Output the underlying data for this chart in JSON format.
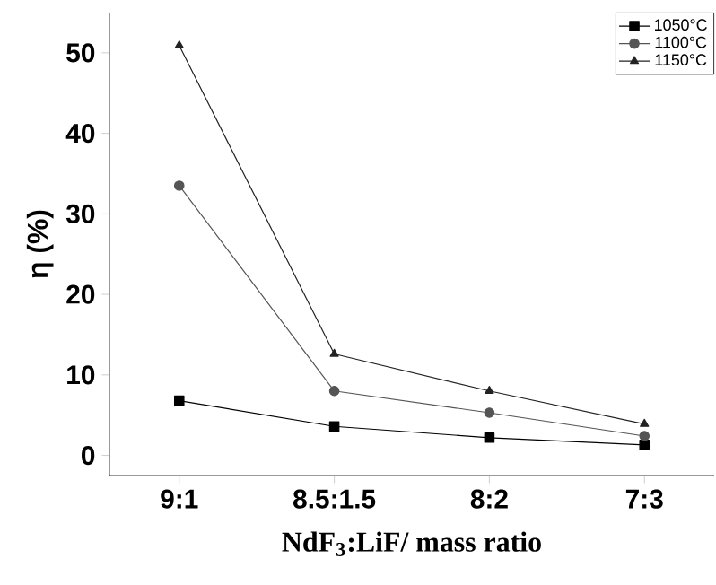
{
  "chart_data": {
    "type": "line",
    "xlabel": "NdF$_{3}$:LiF/ mass ratio",
    "ylabel": "η (%)",
    "categories": [
      "9:1",
      "8.5:1.5",
      "8:2",
      "7:3"
    ],
    "ylim": [
      -2.5,
      55
    ],
    "yticks": [
      0,
      10,
      20,
      30,
      40,
      50
    ],
    "legend": "top right",
    "grid": false,
    "line_style": "solid",
    "series": [
      {
        "name": "1050°C",
        "color": "#000000",
        "marker": "square",
        "values": [
          6.8,
          3.6,
          2.2,
          1.3
        ]
      },
      {
        "name": "1100°C",
        "color": "#555555",
        "marker": "circle",
        "values": [
          33.5,
          8.0,
          5.3,
          2.4
        ]
      },
      {
        "name": "1150°C",
        "color": "#222222",
        "marker": "triangle",
        "values": [
          50.9,
          12.6,
          8.0,
          3.9
        ]
      }
    ]
  }
}
